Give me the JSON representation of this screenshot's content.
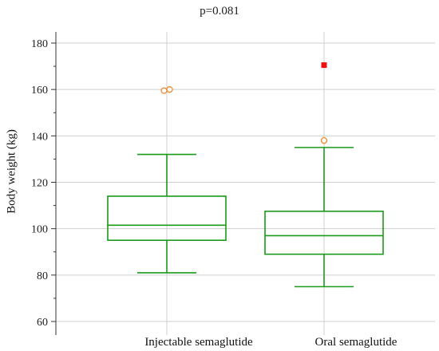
{
  "chart_data": {
    "type": "box",
    "title": "p=0.081",
    "xlabel": "",
    "ylabel": "Body weight (kg)",
    "ylim": [
      55,
      185
    ],
    "yticks": [
      60,
      80,
      100,
      120,
      140,
      160,
      180
    ],
    "grid": "horizontal and vertical gray lines",
    "categories": [
      "Injectable semaglutide",
      "Oral semaglutide"
    ],
    "boxes": [
      {
        "category": "Injectable semaglutide",
        "whisker_low": 81,
        "q1": 95,
        "median": 101.5,
        "q3": 114,
        "whisker_high": 132,
        "outliers": [
          159.5,
          160
        ],
        "far_outliers": []
      },
      {
        "category": "Oral semaglutide",
        "whisker_low": 75,
        "q1": 89,
        "median": 97,
        "q3": 107.5,
        "whisker_high": 135,
        "outliers": [
          138
        ],
        "far_outliers": [
          170.5
        ]
      }
    ],
    "colors": {
      "box": "#1a9a1a",
      "outlier": "#f08a30",
      "far_outlier": "#ee1111",
      "grid": "#cfcfcf",
      "axis": "#333333"
    }
  }
}
